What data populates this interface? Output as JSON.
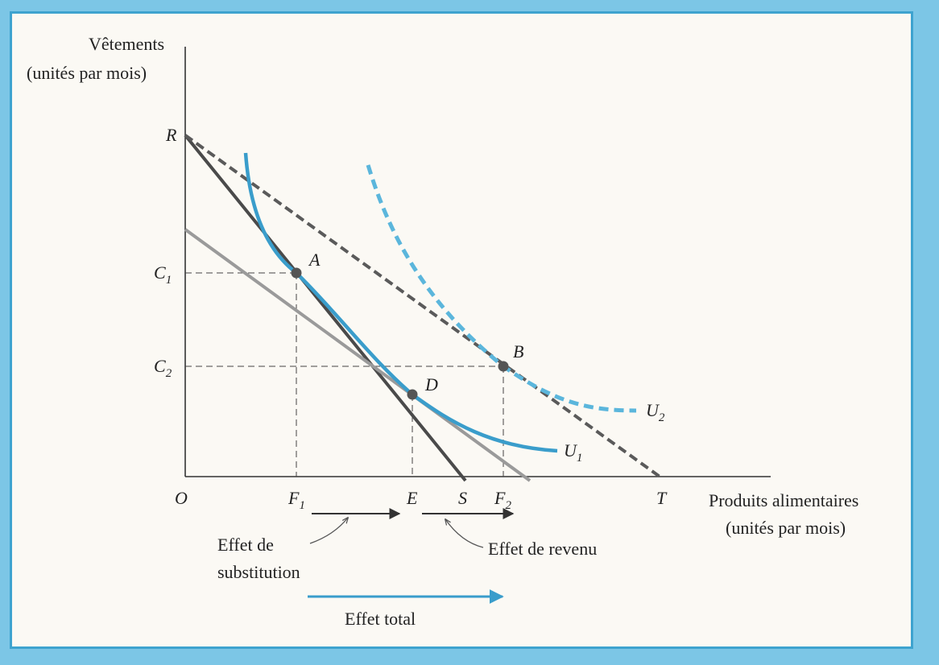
{
  "axes": {
    "y_title_line1": "Vêtements",
    "y_title_line2": "(unités par mois)",
    "x_title_line1": "Produits alimentaires",
    "x_title_line2": "(unités par mois)"
  },
  "axis_marks": {
    "origin": "O",
    "R": "R",
    "C1": "C",
    "C1_sub": "1",
    "C2": "C",
    "C2_sub": "2",
    "F1": "F",
    "F1_sub": "1",
    "E": "E",
    "S": "S",
    "F2": "F",
    "F2_sub": "2",
    "T": "T"
  },
  "points": {
    "A": "A",
    "B": "B",
    "D": "D"
  },
  "curves": {
    "U1": "U",
    "U1_sub": "1",
    "U2": "U",
    "U2_sub": "2"
  },
  "annotations": {
    "substitution_line1": "Effet de",
    "substitution_line2": "substitution",
    "revenu": "Effet de revenu",
    "total": "Effet total"
  },
  "colors": {
    "accent_blue": "#3a9dcb",
    "frame_blue": "#7cc6e6",
    "dark_line": "#4a4a4a",
    "light_line": "#9a9a9a",
    "dashed_line": "#5a5a5a"
  }
}
